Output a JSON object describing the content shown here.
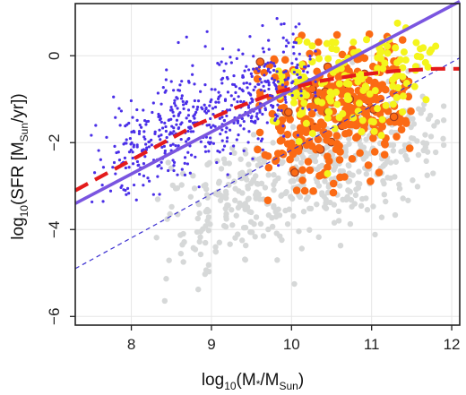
{
  "chart_data": {
    "type": "scatter",
    "xlim": [
      7.3,
      12.1
    ],
    "ylim": [
      -6.2,
      1.2
    ],
    "grid": true,
    "x_ticks": [
      8,
      9,
      10,
      11,
      12
    ],
    "y_ticks": [
      0,
      -2,
      -4,
      -6
    ],
    "x_tick_labels": [
      "8",
      "9",
      "10",
      "11",
      "12"
    ],
    "y_tick_labels": [
      "0",
      "−2",
      "−4",
      "−6"
    ],
    "xlabel": {
      "base": "log",
      "sub": "10",
      "main": "(M",
      "star": "*",
      "slash": "/M",
      "sub2": "Sun",
      "close": ")"
    },
    "ylabel": {
      "base": "log",
      "sub": "10",
      "main": "(SFR [M",
      "sub2": "Sun",
      "tail": "/yr])"
    },
    "colors": {
      "grey": "#d6d8d8",
      "orange": "#fb6a14",
      "yellow": "#f4f51c",
      "blue": "#4a2fe8",
      "purple_fit": "#7a55e0",
      "red_dash": "#e41b1b",
      "thin_dash": "#3b2fd1"
    },
    "lines": [
      {
        "style": "solid-thick",
        "color": "#7a55e0",
        "x": [
          7.3,
          12.1
        ],
        "y": [
          -3.4,
          1.25
        ]
      },
      {
        "style": "thin-dashed",
        "color": "#3b2fd1",
        "x": [
          7.3,
          12.1
        ],
        "y": [
          -4.9,
          -0.05
        ]
      },
      {
        "style": "thick-dashed",
        "color": "#e41b1b",
        "x": [
          7.3,
          7.8,
          8.3,
          8.8,
          9.3,
          9.8,
          10.3,
          10.8,
          11.3,
          11.8,
          12.1
        ],
        "y": [
          -3.1,
          -2.6,
          -2.1,
          -1.6,
          -1.2,
          -0.85,
          -0.6,
          -0.45,
          -0.35,
          -0.3,
          -0.3
        ]
      }
    ],
    "series": [
      {
        "color": "grey",
        "marker": "filled-circle",
        "n": 520,
        "x_range": [
          8.2,
          11.9
        ],
        "trend": [
          -8.9,
          0.6
        ],
        "scatter": 0.7
      },
      {
        "color": "orange",
        "marker": "filled-circle",
        "n": 360,
        "x_range": [
          9.5,
          11.5
        ],
        "trend": [
          -6.0,
          0.45
        ],
        "scatter": 0.75
      },
      {
        "color": "yellow",
        "marker": "filled-circle",
        "n": 150,
        "x_range": [
          9.7,
          11.8
        ],
        "trend": [
          -4.9,
          0.4
        ],
        "scatter": 0.6
      },
      {
        "color": "blue",
        "marker": "small-dot",
        "n": 560,
        "x_range": [
          7.5,
          10.3
        ],
        "trend": [
          -9.0,
          0.85
        ],
        "scatter": 0.6
      }
    ]
  }
}
